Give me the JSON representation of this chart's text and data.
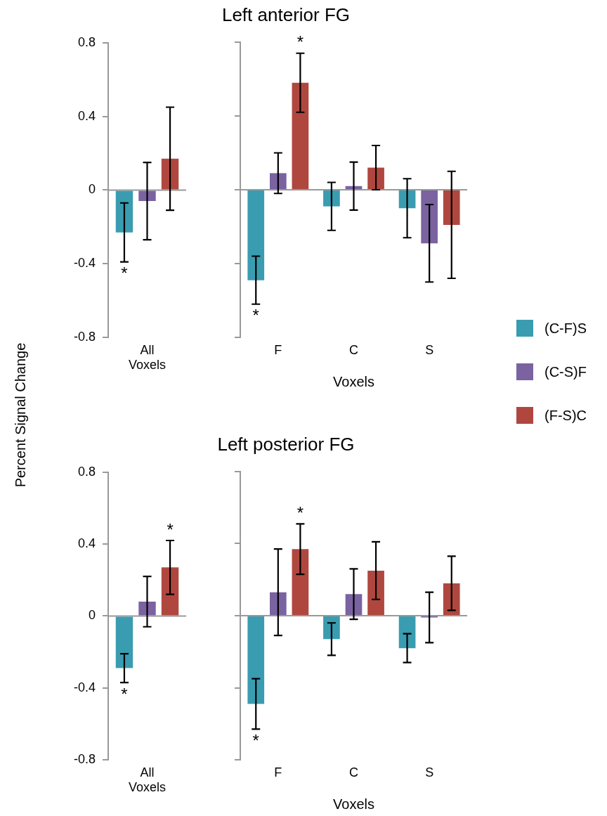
{
  "chart_data": [
    {
      "type": "bar",
      "ylabel": "Percent Signal Change",
      "categories": [
        "All Voxels"
      ],
      "legend": "right",
      "grid": false,
      "ylim": [
        -0.8,
        0.8
      ],
      "yticks": [
        -0.8,
        -0.4,
        0,
        0.4,
        0.8
      ],
      "ref_lines": [
        {
          "axis": "y",
          "value": 0,
          "color": "#999999"
        }
      ],
      "series": [
        {
          "name": "(C-F)S",
          "color": "#3a9cb0",
          "values": [
            -0.23
          ],
          "errors": [
            0.16
          ]
        },
        {
          "name": "(C-S)F",
          "color": "#7a63a0",
          "values": [
            -0.06
          ],
          "errors": [
            0.21
          ]
        },
        {
          "name": "(F-S)C",
          "color": "#b0473f",
          "values": [
            0.17
          ],
          "errors": [
            0.28
          ]
        }
      ],
      "annotations": [
        "*"
      ]
    },
    {
      "type": "bar",
      "title": "Left anterior FG",
      "xlabel": "Voxels",
      "categories": [
        "F",
        "C",
        "S"
      ],
      "grid": false,
      "tick_labels": "x",
      "ylim": [
        -0.8,
        0.8
      ],
      "yticks": [
        -0.8,
        -0.4,
        0,
        0.4,
        0.8
      ],
      "ref_lines": [
        {
          "axis": "y",
          "value": 0,
          "color": "#999999"
        }
      ],
      "series": [
        {
          "color": "#3a9cb0",
          "values": [
            -0.49,
            -0.09,
            -0.1
          ],
          "errors": [
            0.13,
            0.13,
            0.16
          ]
        },
        {
          "color": "#7a63a0",
          "values": [
            0.09,
            0.02,
            -0.29
          ],
          "errors": [
            0.11,
            0.13,
            0.21
          ]
        },
        {
          "color": "#b0473f",
          "values": [
            0.58,
            0.12,
            -0.19
          ],
          "errors": [
            0.16,
            0.12,
            0.29
          ]
        }
      ],
      "annotations": [
        "*",
        "*"
      ]
    },
    {
      "type": "bar",
      "categories": [
        "All Voxels"
      ],
      "grid": false,
      "ylim": [
        -0.8,
        0.8
      ],
      "yticks": [
        -0.8,
        -0.4,
        0,
        0.4,
        0.8
      ],
      "ref_lines": [
        {
          "axis": "y",
          "value": 0,
          "color": "#999999"
        }
      ],
      "series": [
        {
          "color": "#3a9cb0",
          "values": [
            -0.29
          ],
          "errors": [
            0.08
          ]
        },
        {
          "color": "#7a63a0",
          "values": [
            0.08
          ],
          "errors": [
            0.14
          ]
        },
        {
          "color": "#b0473f",
          "values": [
            0.27
          ],
          "errors": [
            0.15
          ]
        }
      ],
      "annotations": [
        "*",
        "*"
      ]
    },
    {
      "type": "bar",
      "title": "Left posterior FG",
      "xlabel": "Voxels",
      "categories": [
        "F",
        "C",
        "S"
      ],
      "grid": false,
      "tick_labels": "x",
      "ylim": [
        -0.8,
        0.8
      ],
      "yticks": [
        -0.8,
        -0.4,
        0,
        0.4,
        0.8
      ],
      "ref_lines": [
        {
          "axis": "y",
          "value": 0,
          "color": "#999999"
        }
      ],
      "series": [
        {
          "color": "#3a9cb0",
          "values": [
            -0.49,
            -0.13,
            -0.18
          ],
          "errors": [
            0.14,
            0.09,
            0.08
          ]
        },
        {
          "color": "#7a63a0",
          "values": [
            0.13,
            0.12,
            -0.01
          ],
          "errors": [
            0.24,
            0.14,
            0.14
          ]
        },
        {
          "color": "#b0473f",
          "values": [
            0.37,
            0.25,
            0.18
          ],
          "errors": [
            0.14,
            0.16,
            0.15
          ]
        }
      ],
      "annotations": [
        "*",
        "*"
      ]
    }
  ]
}
